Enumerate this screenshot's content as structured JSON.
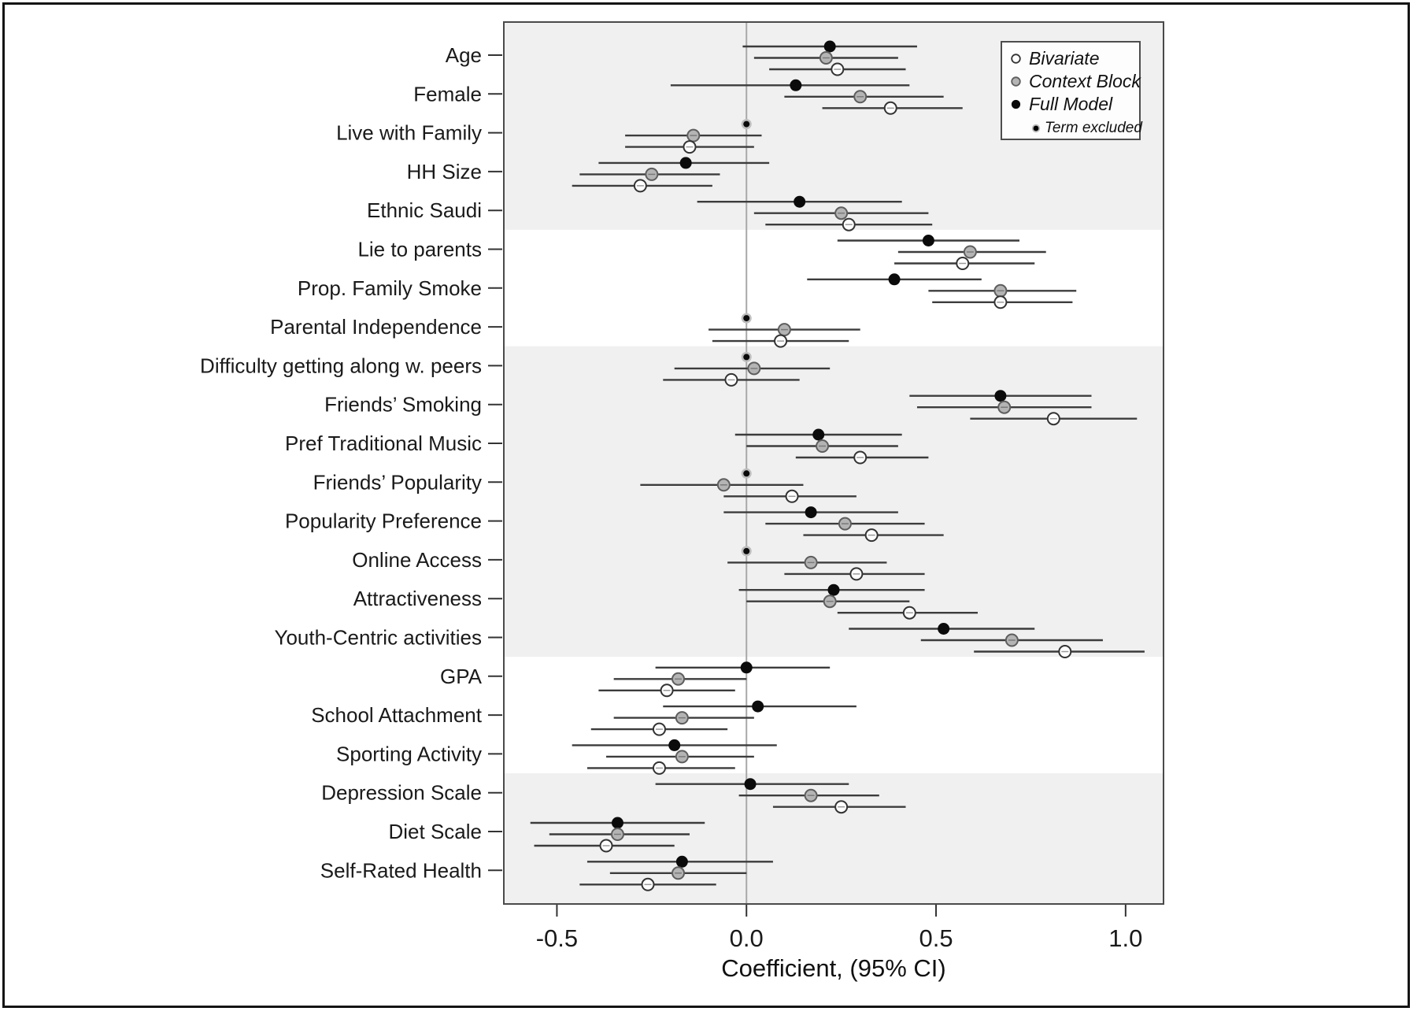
{
  "chart_data": {
    "type": "scatter",
    "variant": "forest-plot",
    "title": "",
    "xlabel": "Coefficient, (95% CI)",
    "ylabel": "",
    "xlim": [
      -0.64,
      1.1
    ],
    "x_ticks": [
      -0.5,
      0.0,
      0.5,
      1.0
    ],
    "x_tick_labels": [
      "-0.5",
      "0.0",
      "0.5",
      "1.0"
    ],
    "grid": false,
    "zero_reference_line": 0.0,
    "legend_position": "top-right",
    "legend": [
      {
        "label": "Bivariate",
        "marker": "open-circle"
      },
      {
        "label": "Context Block",
        "marker": "gray-circle"
      },
      {
        "label": "Full Model",
        "marker": "black-circle"
      },
      {
        "label": "Term excluded",
        "marker": "ringed-dot"
      }
    ],
    "series_order": [
      "full",
      "context",
      "bivariate"
    ],
    "shaded_groups": [
      {
        "first_row": 0,
        "last_row": 4,
        "shaded": true
      },
      {
        "first_row": 5,
        "last_row": 7,
        "shaded": false
      },
      {
        "first_row": 8,
        "last_row": 15,
        "shaded": true
      },
      {
        "first_row": 16,
        "last_row": 18,
        "shaded": false
      },
      {
        "first_row": 19,
        "last_row": 21,
        "shaded": true
      }
    ],
    "rows": [
      {
        "label": "Age",
        "full": {
          "est": 0.22,
          "lo": -0.01,
          "hi": 0.45
        },
        "context": {
          "est": 0.21,
          "lo": 0.02,
          "hi": 0.4
        },
        "bivariate": {
          "est": 0.24,
          "lo": 0.06,
          "hi": 0.42
        }
      },
      {
        "label": "Female",
        "full": {
          "est": 0.13,
          "lo": -0.2,
          "hi": 0.43
        },
        "context": {
          "est": 0.3,
          "lo": 0.1,
          "hi": 0.52
        },
        "bivariate": {
          "est": 0.38,
          "lo": 0.2,
          "hi": 0.57
        }
      },
      {
        "label": "Live with Family",
        "full": {
          "excluded": true
        },
        "context": {
          "est": -0.14,
          "lo": -0.32,
          "hi": 0.04
        },
        "bivariate": {
          "est": -0.15,
          "lo": -0.32,
          "hi": 0.02
        }
      },
      {
        "label": "HH Size",
        "full": {
          "est": -0.16,
          "lo": -0.39,
          "hi": 0.06
        },
        "context": {
          "est": -0.25,
          "lo": -0.44,
          "hi": -0.07
        },
        "bivariate": {
          "est": -0.28,
          "lo": -0.46,
          "hi": -0.09
        }
      },
      {
        "label": "Ethnic Saudi",
        "full": {
          "est": 0.14,
          "lo": -0.13,
          "hi": 0.41
        },
        "context": {
          "est": 0.25,
          "lo": 0.02,
          "hi": 0.48
        },
        "bivariate": {
          "est": 0.27,
          "lo": 0.05,
          "hi": 0.49
        }
      },
      {
        "label": "Lie to parents",
        "full": {
          "est": 0.48,
          "lo": 0.24,
          "hi": 0.72
        },
        "context": {
          "est": 0.59,
          "lo": 0.4,
          "hi": 0.79
        },
        "bivariate": {
          "est": 0.57,
          "lo": 0.39,
          "hi": 0.76
        }
      },
      {
        "label": "Prop. Family Smoke",
        "full": {
          "est": 0.39,
          "lo": 0.16,
          "hi": 0.62
        },
        "context": {
          "est": 0.67,
          "lo": 0.48,
          "hi": 0.87
        },
        "bivariate": {
          "est": 0.67,
          "lo": 0.49,
          "hi": 0.86
        }
      },
      {
        "label": "Parental Independence",
        "full": {
          "excluded": true
        },
        "context": {
          "est": 0.1,
          "lo": -0.1,
          "hi": 0.3
        },
        "bivariate": {
          "est": 0.09,
          "lo": -0.09,
          "hi": 0.27
        }
      },
      {
        "label": "Difficulty getting along w. peers",
        "full": {
          "excluded": true
        },
        "context": {
          "est": 0.02,
          "lo": -0.19,
          "hi": 0.22
        },
        "bivariate": {
          "est": -0.04,
          "lo": -0.22,
          "hi": 0.14
        }
      },
      {
        "label": "Friends’ Smoking",
        "full": {
          "est": 0.67,
          "lo": 0.43,
          "hi": 0.91
        },
        "context": {
          "est": 0.68,
          "lo": 0.45,
          "hi": 0.91
        },
        "bivariate": {
          "est": 0.81,
          "lo": 0.59,
          "hi": 1.03
        }
      },
      {
        "label": "Pref Traditional Music",
        "full": {
          "est": 0.19,
          "lo": -0.03,
          "hi": 0.41
        },
        "context": {
          "est": 0.2,
          "lo": 0.0,
          "hi": 0.4
        },
        "bivariate": {
          "est": 0.3,
          "lo": 0.13,
          "hi": 0.48
        }
      },
      {
        "label": "Friends’ Popularity",
        "full": {
          "excluded": true
        },
        "context": {
          "est": -0.06,
          "lo": -0.28,
          "hi": 0.15
        },
        "bivariate": {
          "est": 0.12,
          "lo": -0.06,
          "hi": 0.29
        }
      },
      {
        "label": "Popularity Preference",
        "full": {
          "est": 0.17,
          "lo": -0.06,
          "hi": 0.4
        },
        "context": {
          "est": 0.26,
          "lo": 0.05,
          "hi": 0.47
        },
        "bivariate": {
          "est": 0.33,
          "lo": 0.15,
          "hi": 0.52
        }
      },
      {
        "label": "Online Access",
        "full": {
          "excluded": true
        },
        "context": {
          "est": 0.17,
          "lo": -0.05,
          "hi": 0.37
        },
        "bivariate": {
          "est": 0.29,
          "lo": 0.1,
          "hi": 0.47
        }
      },
      {
        "label": "Attractiveness",
        "full": {
          "est": 0.23,
          "lo": -0.02,
          "hi": 0.47
        },
        "context": {
          "est": 0.22,
          "lo": 0.0,
          "hi": 0.43
        },
        "bivariate": {
          "est": 0.43,
          "lo": 0.24,
          "hi": 0.61
        }
      },
      {
        "label": "Youth-Centric activities",
        "full": {
          "est": 0.52,
          "lo": 0.27,
          "hi": 0.76
        },
        "context": {
          "est": 0.7,
          "lo": 0.46,
          "hi": 0.94
        },
        "bivariate": {
          "est": 0.84,
          "lo": 0.6,
          "hi": 1.05
        }
      },
      {
        "label": "GPA",
        "full": {
          "est": 0.0,
          "lo": -0.24,
          "hi": 0.22
        },
        "context": {
          "est": -0.18,
          "lo": -0.35,
          "hi": 0.0
        },
        "bivariate": {
          "est": -0.21,
          "lo": -0.39,
          "hi": -0.03
        }
      },
      {
        "label": "School Attachment",
        "full": {
          "est": 0.03,
          "lo": -0.22,
          "hi": 0.29
        },
        "context": {
          "est": -0.17,
          "lo": -0.35,
          "hi": 0.02
        },
        "bivariate": {
          "est": -0.23,
          "lo": -0.41,
          "hi": -0.05
        }
      },
      {
        "label": "Sporting Activity",
        "full": {
          "est": -0.19,
          "lo": -0.46,
          "hi": 0.08
        },
        "context": {
          "est": -0.17,
          "lo": -0.37,
          "hi": 0.02
        },
        "bivariate": {
          "est": -0.23,
          "lo": -0.42,
          "hi": -0.03
        }
      },
      {
        "label": "Depression Scale",
        "full": {
          "est": 0.01,
          "lo": -0.24,
          "hi": 0.27
        },
        "context": {
          "est": 0.17,
          "lo": -0.02,
          "hi": 0.35
        },
        "bivariate": {
          "est": 0.25,
          "lo": 0.07,
          "hi": 0.42
        }
      },
      {
        "label": "Diet Scale",
        "full": {
          "est": -0.34,
          "lo": -0.57,
          "hi": -0.11
        },
        "context": {
          "est": -0.34,
          "lo": -0.52,
          "hi": -0.15
        },
        "bivariate": {
          "est": -0.37,
          "lo": -0.56,
          "hi": -0.19
        }
      },
      {
        "label": "Self-Rated Health",
        "full": {
          "est": -0.17,
          "lo": -0.42,
          "hi": 0.07
        },
        "context": {
          "est": -0.18,
          "lo": -0.36,
          "hi": 0.0
        },
        "bivariate": {
          "est": -0.26,
          "lo": -0.44,
          "hi": -0.08
        }
      }
    ],
    "colors": {
      "band": "#f0f0f0",
      "ci_line": "#3c3c3c",
      "zero_line": "#a8a8a8",
      "marker_full": "#0b0b0b",
      "marker_context_fill": "#b4b4b4",
      "marker_context_stroke": "#5e5e5e",
      "marker_bivariate_fill": "#ffffff",
      "marker_bivariate_stroke": "#333333",
      "excluded_ring": "#bdbdbd",
      "plot_border": "#4a4a4a",
      "text": "#1a1a1a"
    }
  }
}
